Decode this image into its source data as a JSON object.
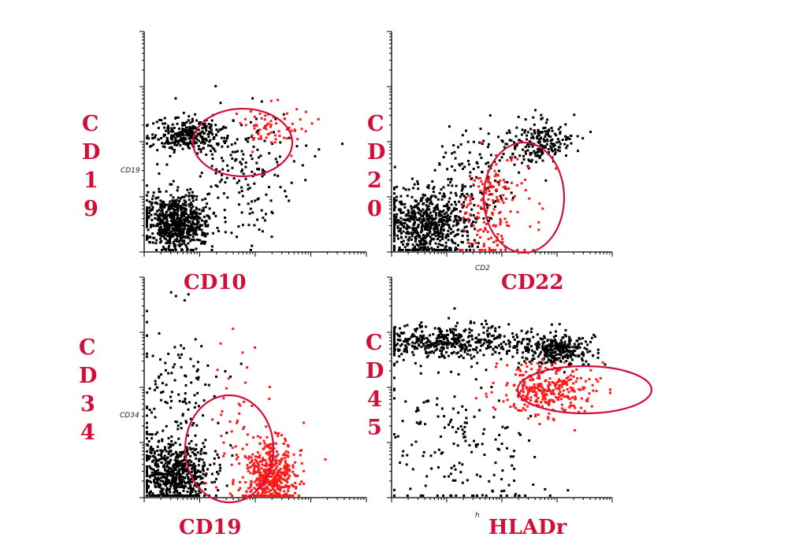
{
  "colors": {
    "label": "#d0103a",
    "gated_events": "#ff1a1a",
    "events": "#000000",
    "gate": "#d0103a"
  },
  "chart_data": [
    {
      "type": "scatter",
      "y_label_letters": [
        "C",
        "D",
        "1",
        "9"
      ],
      "xlabel": "CD10",
      "axis_small_label": "CD19",
      "scale": "log",
      "series": [
        {
          "color": "black",
          "populations": [
            "dense cluster low CD10 / low CD19",
            "band high CD19 / low CD10",
            "diagonal scatter"
          ]
        },
        {
          "color": "red",
          "populations": [
            "gated cluster high CD10 / high CD19"
          ]
        }
      ]
    },
    {
      "type": "scatter",
      "y_label_letters": [
        "C",
        "D",
        "2",
        "0"
      ],
      "xlabel": "CD22",
      "axis_small_label": "CD2",
      "scale": "log",
      "series": [
        {
          "color": "black",
          "populations": [
            "dense cluster low",
            "diagonal rising",
            "cluster high CD20 / high CD22"
          ]
        },
        {
          "color": "red",
          "populations": [
            "gated population mid CD22 / low CD20"
          ]
        }
      ]
    },
    {
      "type": "scatter",
      "y_label_letters": [
        "C",
        "D",
        "3",
        "4"
      ],
      "xlabel": "CD19",
      "axis_small_label": "CD34",
      "scale": "log",
      "series": [
        {
          "color": "black",
          "populations": [
            "dense cluster low CD19 / low CD34",
            "scattered high CD34"
          ]
        },
        {
          "color": "red",
          "populations": [
            "gated cluster mid CD19 / low-mid CD34"
          ]
        }
      ]
    },
    {
      "type": "scatter",
      "y_label_letters": [
        "C",
        "D",
        "4",
        "5"
      ],
      "xlabel": "HLADr",
      "axis_small_label": "h",
      "scale": "log",
      "series": [
        {
          "color": "black",
          "populations": [
            "band high CD45 across HLADr",
            "cluster high CD45 / high HLADr",
            "diagonal rising tail"
          ]
        },
        {
          "color": "red",
          "populations": [
            "gated cluster mid CD45 / high HLADr"
          ]
        }
      ]
    }
  ]
}
